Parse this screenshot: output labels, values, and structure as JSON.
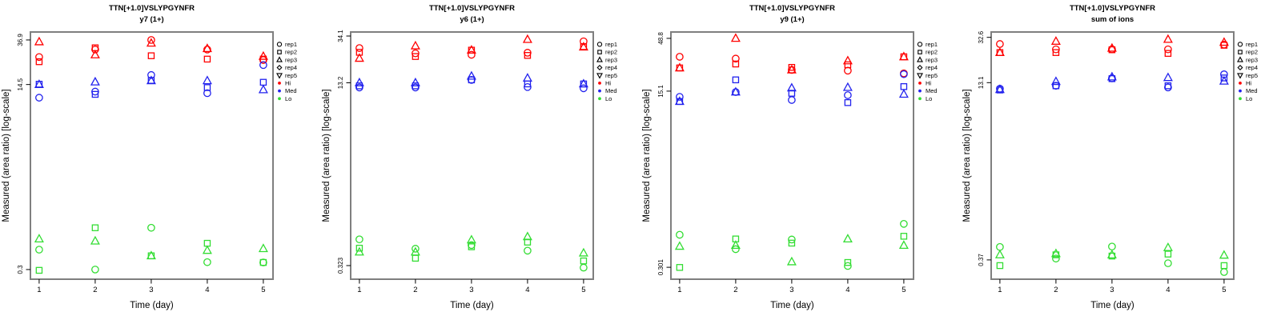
{
  "figure": {
    "y_axis_label": "Measured (area ratio) [log-scale]",
    "x_axis_label": "Time (day)",
    "x_tick_labels": [
      "1",
      "2",
      "3",
      "4",
      "5"
    ],
    "colors": {
      "hi": "#FF0000",
      "med": "#2222EE",
      "lo": "#33DD33",
      "frame": "#7f7f7f",
      "text": "#000000"
    },
    "legend": {
      "items": [
        {
          "label": "rep1",
          "marker": "circle"
        },
        {
          "label": "rep2",
          "marker": "square"
        },
        {
          "label": "rep3",
          "marker": "triangle"
        },
        {
          "label": "rep4",
          "marker": "diamond"
        },
        {
          "label": "rep5",
          "marker": "triangle-down"
        },
        {
          "label": "Hi",
          "dot_color": "#FF0000"
        },
        {
          "label": "Med",
          "dot_color": "#2222EE"
        },
        {
          "label": "Lo",
          "dot_color": "#33DD33"
        }
      ]
    }
  },
  "chart_data": [
    {
      "type": "scatter",
      "title": "TTN[+1.0]VSLYPGYNFR",
      "subtitle": "y7 (1+)",
      "xlabel": "Time (day)",
      "ylabel": "Measured (area ratio) [log-scale]",
      "log_scale": true,
      "x": [
        1,
        2,
        3,
        4,
        5
      ],
      "xlim": [
        0.5,
        5.5
      ],
      "ylim": [
        0.245,
        43.6
      ],
      "yticks": [
        {
          "label": "36.9",
          "value": 36.9
        },
        {
          "label": "14.5",
          "value": 14.5
        },
        {
          "label": "0.3",
          "value": 0.3
        }
      ],
      "series": [
        {
          "name": "Hi rep1",
          "group": "Hi",
          "marker": "circle",
          "color": "hi",
          "values": [
            25.8,
            30.2,
            36.9,
            30.2,
            24.2
          ]
        },
        {
          "name": "Hi rep2",
          "group": "Hi",
          "marker": "square",
          "color": "hi",
          "values": [
            23.4,
            31.3,
            26.5,
            24.7,
            24.7
          ]
        },
        {
          "name": "Hi rep3",
          "group": "Hi",
          "marker": "triangle",
          "color": "hi",
          "values": [
            35.5,
            27.0,
            34.5,
            30.8,
            26.2
          ]
        },
        {
          "name": "Med rep1",
          "group": "Med",
          "marker": "circle",
          "color": "med",
          "values": [
            11.0,
            12.5,
            17.7,
            12.1,
            21.8
          ]
        },
        {
          "name": "Med rep2",
          "group": "Med",
          "marker": "square",
          "color": "med",
          "values": [
            14.6,
            11.8,
            15.8,
            13.6,
            15.2
          ]
        },
        {
          "name": "Med rep3",
          "group": "Med",
          "marker": "triangle",
          "color": "med",
          "values": [
            14.5,
            15.3,
            15.7,
            15.7,
            13.0
          ]
        },
        {
          "name": "Lo rep1",
          "group": "Lo",
          "marker": "circle",
          "color": "lo",
          "values": [
            0.455,
            0.3,
            0.72,
            0.35,
            0.348
          ]
        },
        {
          "name": "Lo rep2",
          "group": "Lo",
          "marker": "square",
          "color": "lo",
          "values": [
            0.295,
            0.72,
            0.4,
            0.52,
            0.348
          ]
        },
        {
          "name": "Lo rep3",
          "group": "Lo",
          "marker": "triangle",
          "color": "lo",
          "values": [
            0.57,
            0.545,
            0.4,
            0.448,
            0.465
          ]
        }
      ]
    },
    {
      "type": "scatter",
      "title": "TTN[+1.0]VSLYPGYNFR",
      "subtitle": "y6 (1+)",
      "xlabel": "Time (day)",
      "ylabel": "Measured (area ratio) [log-scale]",
      "log_scale": true,
      "x": [
        1,
        2,
        3,
        4,
        5
      ],
      "xlim": [
        0.5,
        5.5
      ],
      "ylim": [
        0.245,
        37.0
      ],
      "yticks": [
        {
          "label": "34.1",
          "value": 34.1
        },
        {
          "label": "13.2",
          "value": 13.2
        },
        {
          "label": "0.323",
          "value": 0.323
        }
      ],
      "series": [
        {
          "name": "Hi rep1",
          "group": "Hi",
          "marker": "circle",
          "color": "hi",
          "values": [
            26.7,
            24.0,
            23.3,
            24.3,
            30.6
          ]
        },
        {
          "name": "Hi rep2",
          "group": "Hi",
          "marker": "square",
          "color": "hi",
          "values": [
            24.5,
            22.5,
            25.6,
            23.0,
            27.5
          ]
        },
        {
          "name": "Hi rep3",
          "group": "Hi",
          "marker": "triangle",
          "color": "hi",
          "values": [
            21.7,
            27.9,
            25.6,
            31.8,
            27.3
          ]
        },
        {
          "name": "Med rep1",
          "group": "Med",
          "marker": "circle",
          "color": "med",
          "values": [
            12.0,
            12.0,
            14.0,
            12.1,
            11.8
          ]
        },
        {
          "name": "Med rep2",
          "group": "Med",
          "marker": "square",
          "color": "med",
          "values": [
            12.4,
            12.4,
            14.0,
            12.9,
            12.9
          ]
        },
        {
          "name": "Med rep3",
          "group": "Med",
          "marker": "triangle",
          "color": "med",
          "values": [
            13.2,
            13.2,
            15.1,
            14.5,
            12.9
          ]
        },
        {
          "name": "Lo rep1",
          "group": "Lo",
          "marker": "circle",
          "color": "lo",
          "values": [
            0.55,
            0.455,
            0.49,
            0.437,
            0.31
          ]
        },
        {
          "name": "Lo rep2",
          "group": "Lo",
          "marker": "square",
          "color": "lo",
          "values": [
            0.46,
            0.375,
            0.473,
            0.52,
            0.355
          ]
        },
        {
          "name": "Lo rep3",
          "group": "Lo",
          "marker": "triangle",
          "color": "lo",
          "values": [
            0.425,
            0.425,
            0.544,
            0.58,
            0.417
          ]
        }
      ]
    },
    {
      "type": "scatter",
      "title": "TTN[+1.0]VSLYPGYNFR",
      "subtitle": "y9 (1+)",
      "xlabel": "Time (day)",
      "ylabel": "Measured (area ratio) [log-scale]",
      "log_scale": true,
      "x": [
        1,
        2,
        3,
        4,
        5
      ],
      "xlim": [
        0.5,
        5.5
      ],
      "ylim": [
        0.231,
        56.2
      ],
      "yticks": [
        {
          "label": "48.8",
          "value": 48.8
        },
        {
          "label": "15.1",
          "value": 15.1
        },
        {
          "label": "0.301",
          "value": 0.301
        }
      ],
      "series": [
        {
          "name": "Hi rep1",
          "group": "Hi",
          "marker": "circle",
          "color": "hi",
          "values": [
            32.4,
            31.1,
            24.2,
            23.8,
            22.4
          ]
        },
        {
          "name": "Hi rep2",
          "group": "Hi",
          "marker": "square",
          "color": "hi",
          "values": [
            25.3,
            27.6,
            25.6,
            27.1,
            32.4
          ]
        },
        {
          "name": "Hi rep3",
          "group": "Hi",
          "marker": "triangle",
          "color": "hi",
          "values": [
            25.3,
            48.8,
            24.2,
            29.6,
            32.4
          ]
        },
        {
          "name": "Med rep1",
          "group": "Med",
          "marker": "circle",
          "color": "med",
          "values": [
            13.3,
            14.8,
            12.4,
            13.8,
            22.0
          ]
        },
        {
          "name": "Med rep2",
          "group": "Med",
          "marker": "square",
          "color": "med",
          "values": [
            12.0,
            19.4,
            14.4,
            11.7,
            16.7
          ]
        },
        {
          "name": "Med rep3",
          "group": "Med",
          "marker": "triangle",
          "color": "med",
          "values": [
            12.0,
            14.8,
            16.2,
            16.4,
            14.1
          ]
        },
        {
          "name": "Lo rep1",
          "group": "Lo",
          "marker": "circle",
          "color": "lo",
          "values": [
            0.62,
            0.45,
            0.558,
            0.31,
            0.79
          ]
        },
        {
          "name": "Lo rep2",
          "group": "Lo",
          "marker": "square",
          "color": "lo",
          "values": [
            0.3,
            0.565,
            0.515,
            0.335,
            0.6
          ]
        },
        {
          "name": "Lo rep3",
          "group": "Lo",
          "marker": "triangle",
          "color": "lo",
          "values": [
            0.48,
            0.49,
            0.34,
            0.565,
            0.49
          ]
        }
      ]
    },
    {
      "type": "scatter",
      "title": "TTN[+1.0]VSLYPGYNFR",
      "subtitle": "sum of ions",
      "xlabel": "Time (day)",
      "ylabel": "Measured (area ratio) [log-scale]",
      "log_scale": true,
      "x": [
        1,
        2,
        3,
        4,
        5
      ],
      "xlim": [
        0.5,
        5.5
      ],
      "ylim": [
        0.251,
        36.3
      ],
      "yticks": [
        {
          "label": "32.6",
          "value": 32.6
        },
        {
          "label": "13.1",
          "value": 13.1
        },
        {
          "label": "0.37",
          "value": 0.37
        }
      ],
      "series": [
        {
          "name": "Hi rep1",
          "group": "Hi",
          "marker": "circle",
          "color": "hi",
          "values": [
            28.5,
            25.6,
            25.6,
            25.6,
            28.2
          ]
        },
        {
          "name": "Hi rep2",
          "group": "Hi",
          "marker": "square",
          "color": "hi",
          "values": [
            24.0,
            24.0,
            25.4,
            23.6,
            27.8
          ]
        },
        {
          "name": "Hi rep3",
          "group": "Hi",
          "marker": "triangle",
          "color": "hi",
          "values": [
            24.0,
            30.1,
            26.2,
            31.3,
            29.5
          ]
        },
        {
          "name": "Med rep1",
          "group": "Med",
          "marker": "circle",
          "color": "med",
          "values": [
            11.6,
            12.3,
            14.3,
            11.9,
            15.5
          ]
        },
        {
          "name": "Med rep2",
          "group": "Med",
          "marker": "square",
          "color": "med",
          "values": [
            11.3,
            12.3,
            14.2,
            12.3,
            14.4
          ]
        },
        {
          "name": "Med rep3",
          "group": "Med",
          "marker": "triangle",
          "color": "med",
          "values": [
            11.4,
            13.4,
            14.7,
            14.5,
            13.5
          ]
        },
        {
          "name": "Lo rep1",
          "group": "Lo",
          "marker": "circle",
          "color": "lo",
          "values": [
            0.48,
            0.38,
            0.484,
            0.346,
            0.29
          ]
        },
        {
          "name": "Lo rep2",
          "group": "Lo",
          "marker": "square",
          "color": "lo",
          "values": [
            0.33,
            0.41,
            0.4,
            0.416,
            0.33
          ]
        },
        {
          "name": "Lo rep3",
          "group": "Lo",
          "marker": "triangle",
          "color": "lo",
          "values": [
            0.41,
            0.42,
            0.41,
            0.474,
            0.407
          ]
        }
      ]
    }
  ]
}
